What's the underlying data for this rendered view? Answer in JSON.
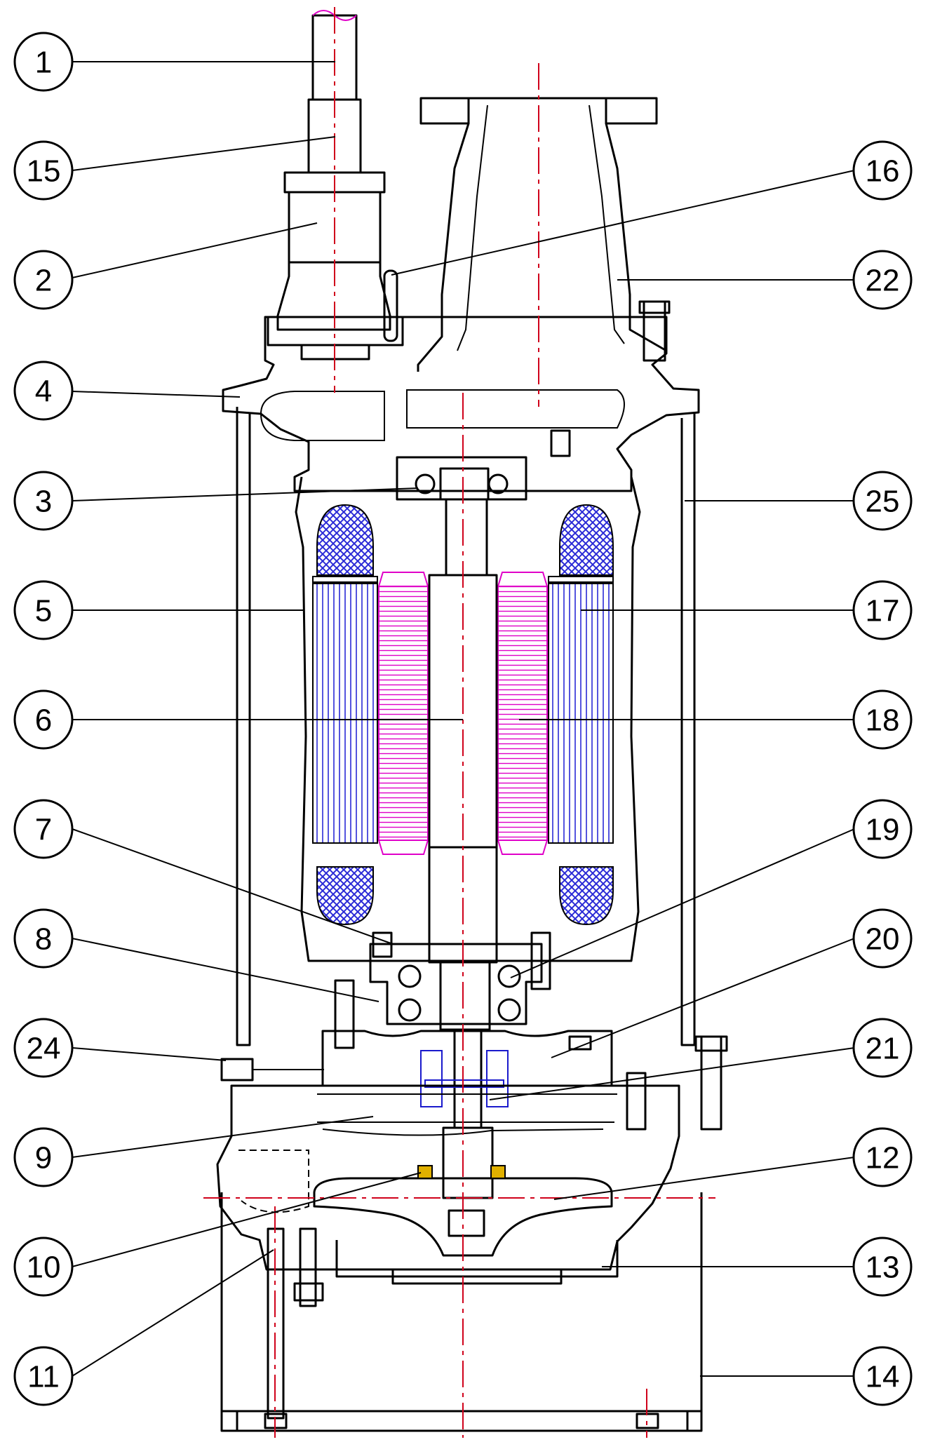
{
  "colors": {
    "line": "#000000",
    "centerline": "#d0021b",
    "winding": "#2a2ad6",
    "rotor": "#e000c8",
    "seal": "#1a1acc",
    "impeller_ring": "#e0b000"
  },
  "callouts": [
    {
      "id": "c1",
      "label": "1"
    },
    {
      "id": "c15",
      "label": "15"
    },
    {
      "id": "c2",
      "label": "2"
    },
    {
      "id": "c4",
      "label": "4"
    },
    {
      "id": "c3",
      "label": "3"
    },
    {
      "id": "c5",
      "label": "5"
    },
    {
      "id": "c6",
      "label": "6"
    },
    {
      "id": "c7",
      "label": "7"
    },
    {
      "id": "c8",
      "label": "8"
    },
    {
      "id": "c24",
      "label": "24"
    },
    {
      "id": "c9",
      "label": "9"
    },
    {
      "id": "c10",
      "label": "10"
    },
    {
      "id": "c11",
      "label": "11"
    },
    {
      "id": "c16",
      "label": "16"
    },
    {
      "id": "c22",
      "label": "22"
    },
    {
      "id": "c25",
      "label": "25"
    },
    {
      "id": "c17",
      "label": "17"
    },
    {
      "id": "c18",
      "label": "18"
    },
    {
      "id": "c19",
      "label": "19"
    },
    {
      "id": "c20",
      "label": "20"
    },
    {
      "id": "c21",
      "label": "21"
    },
    {
      "id": "c12",
      "label": "12"
    },
    {
      "id": "c13",
      "label": "13"
    },
    {
      "id": "c14",
      "label": "14"
    }
  ]
}
